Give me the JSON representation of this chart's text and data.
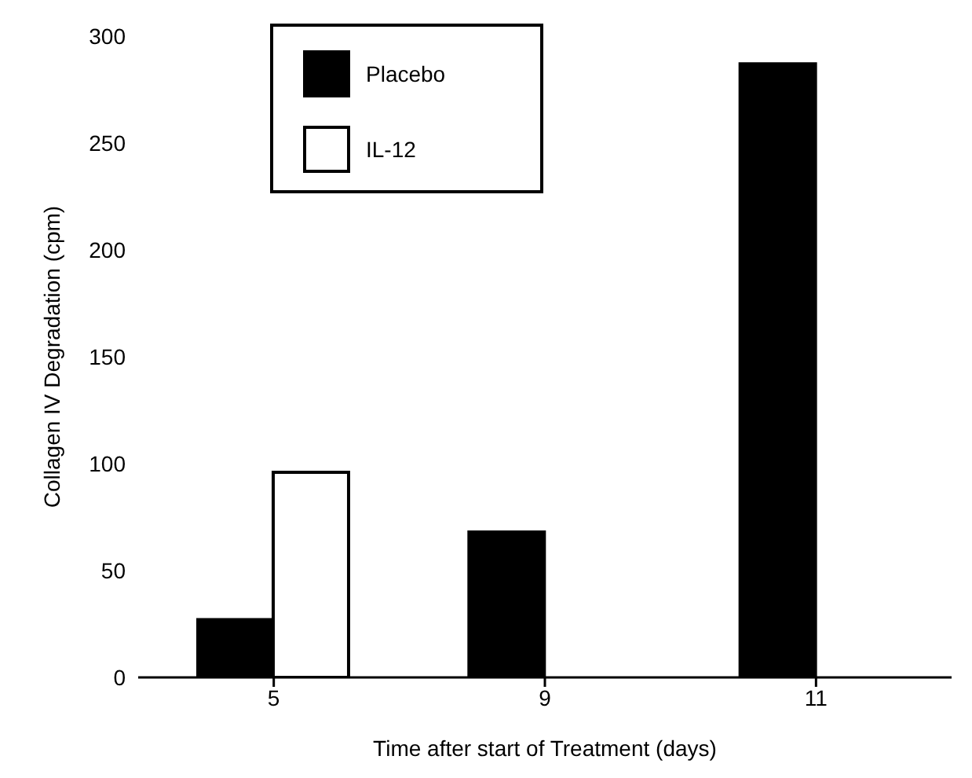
{
  "chart_data": {
    "type": "bar",
    "xlabel": "Time after start of Treatment (days)",
    "ylabel": "Collagen IV Degradation (cpm)",
    "categories": [
      "5",
      "9",
      "11"
    ],
    "series": [
      {
        "name": "Placebo",
        "color": "#000000",
        "values": [
          27,
          68,
          287
        ]
      },
      {
        "name": "IL-12",
        "color": "#ffffff",
        "values": [
          96,
          null,
          null
        ]
      }
    ],
    "ylim": [
      0,
      300
    ],
    "yticks": [
      0,
      50,
      100,
      150,
      200,
      250,
      300
    ],
    "grid": false,
    "legend": "top left"
  }
}
